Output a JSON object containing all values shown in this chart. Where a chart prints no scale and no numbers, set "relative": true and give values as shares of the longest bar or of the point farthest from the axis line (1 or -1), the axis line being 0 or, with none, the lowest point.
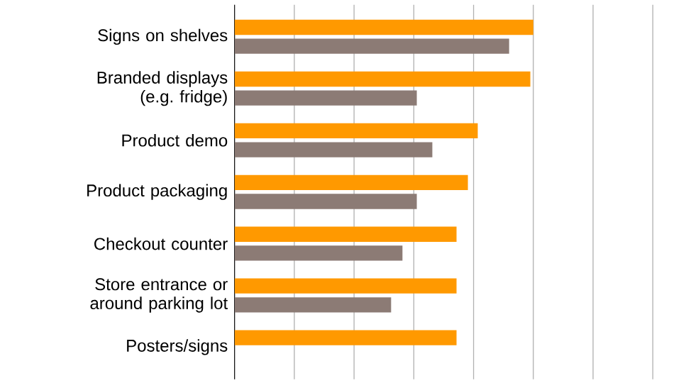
{
  "chart_data": {
    "type": "bar",
    "orientation": "horizontal",
    "relative": true,
    "grid": "x",
    "categories": [
      "Signs on shelves",
      "Branded displays (e.g. fridge)",
      "Product demo",
      "Product packaging",
      "Checkout counter",
      "Store entrance or around parking lot",
      "Posters/signs"
    ],
    "series": [
      {
        "color": "#ff9900",
        "values": [
          1.0,
          0.99,
          0.814,
          0.781,
          0.743,
          0.743,
          0.743
        ]
      },
      {
        "color": "#8c7b75",
        "values": [
          0.919,
          0.61,
          0.662,
          0.61,
          0.562,
          0.524,
          null
        ]
      }
    ]
  }
}
